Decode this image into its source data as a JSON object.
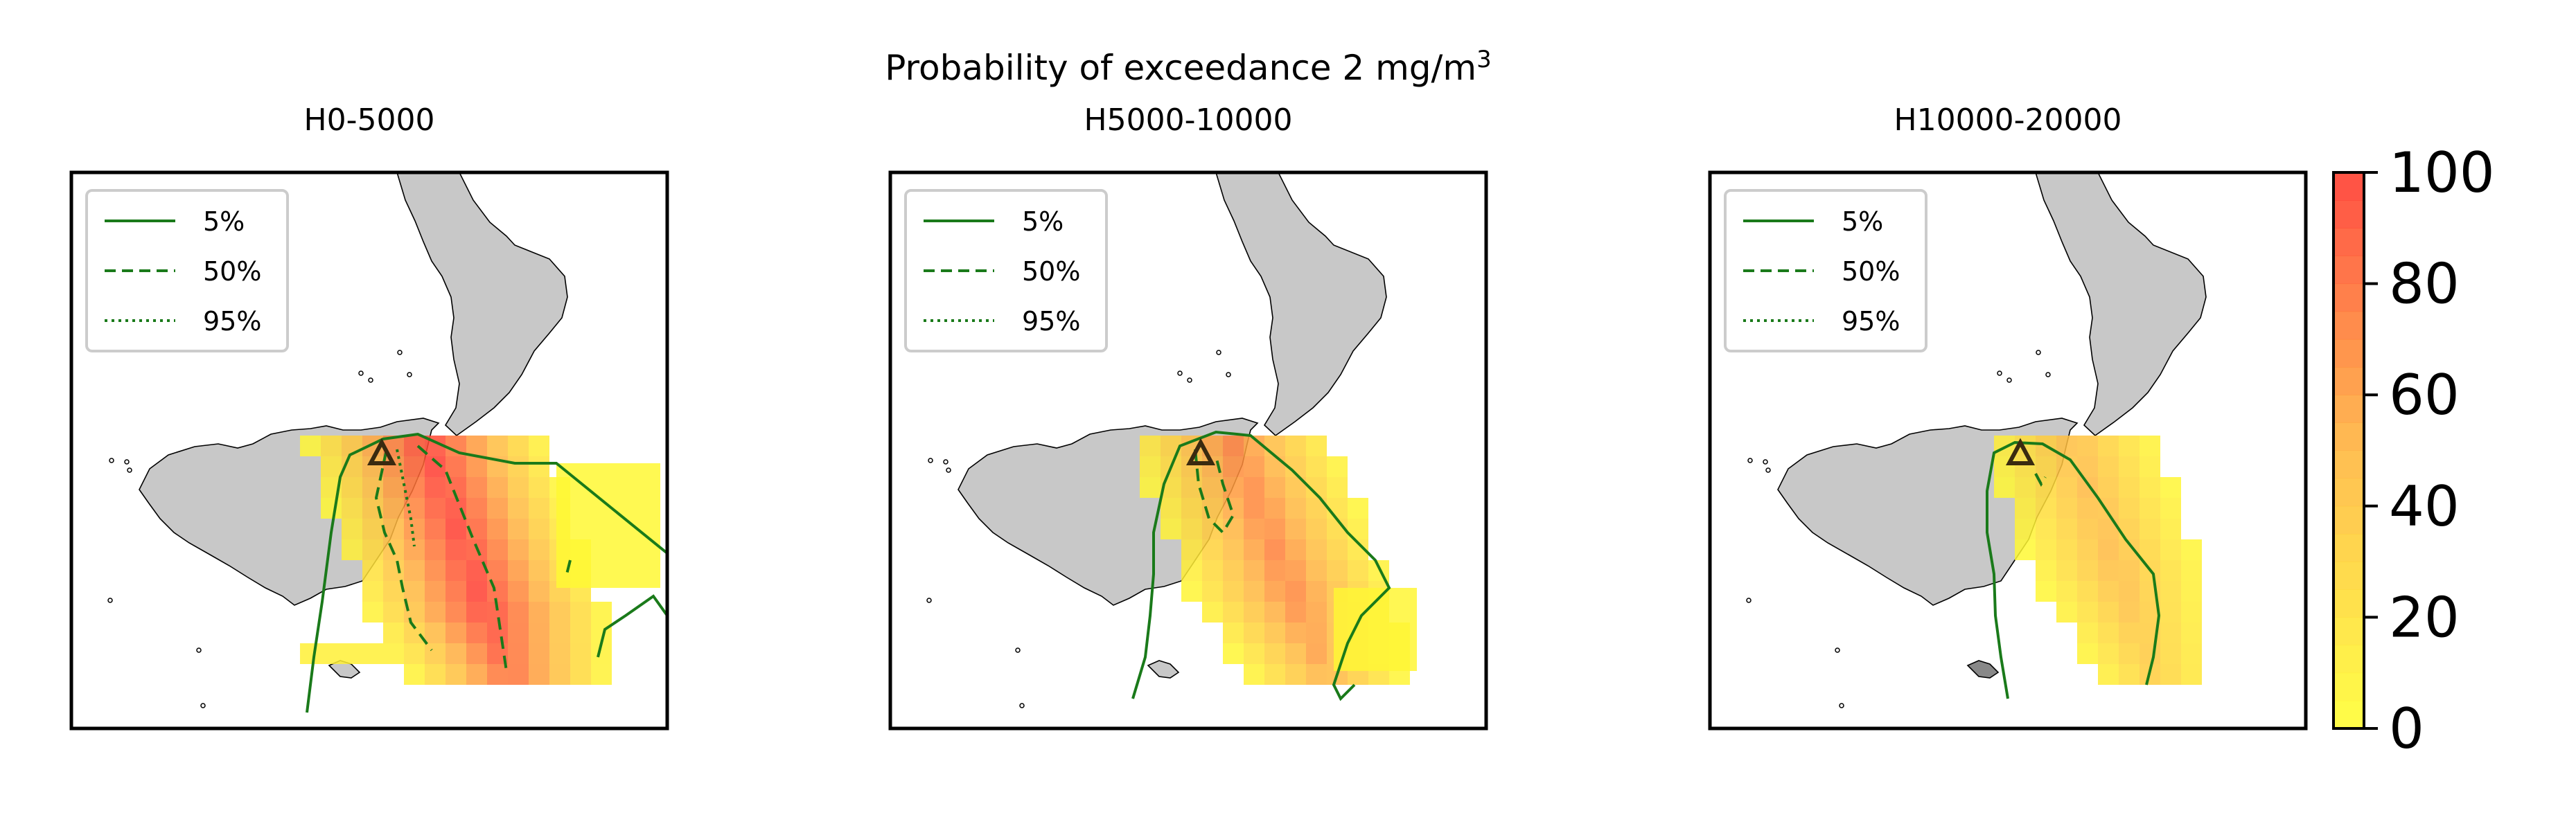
{
  "figure": {
    "suptitle_main": "Probability of exceedance 2 mg/m",
    "suptitle_sup": "3"
  },
  "panels": [
    {
      "title": "H0-5000"
    },
    {
      "title": "H5000-10000"
    },
    {
      "title": "H10000-20000"
    }
  ],
  "legend": {
    "items": [
      {
        "label": "5%",
        "style": "solid"
      },
      {
        "label": "50%",
        "style": "dashed"
      },
      {
        "label": "95%",
        "style": "dotted"
      }
    ],
    "placement": "upper-left"
  },
  "colorbar": {
    "ticks": [
      "0",
      "20",
      "40",
      "60",
      "80",
      "100"
    ],
    "range": [
      0,
      100
    ],
    "color_low": "#ffff33",
    "color_high": "#ff3b30"
  },
  "colors": {
    "land": "#c8c8c8",
    "contour": "#1a7a1a",
    "vent_marker": "#3a2a10"
  },
  "chart_data": [
    {
      "type": "heatmap",
      "title": "H0-5000",
      "contour_levels": [
        "5%",
        "50%",
        "95%"
      ],
      "value_range": [
        0,
        100
      ],
      "max_probability": 100
    },
    {
      "type": "heatmap",
      "title": "H5000-10000",
      "contour_levels": [
        "5%",
        "50%",
        "95%"
      ],
      "value_range": [
        0,
        100
      ],
      "max_probability": 75
    },
    {
      "type": "heatmap",
      "title": "H10000-20000",
      "contour_levels": [
        "5%",
        "50%",
        "95%"
      ],
      "value_range": [
        0,
        100
      ],
      "max_probability": 50
    }
  ]
}
